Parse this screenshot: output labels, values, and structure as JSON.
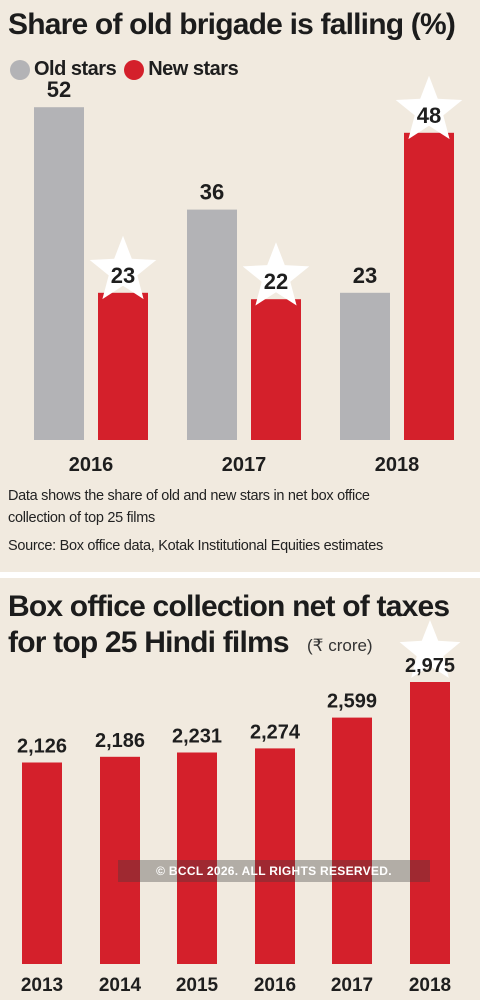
{
  "colors": {
    "old_stars": "#b3b3b6",
    "new_stars": "#d4202b",
    "background": "#f1eadf",
    "star": "#ffffff"
  },
  "top_panel": {
    "title": "Share of old brigade is falling (%)",
    "legend": [
      {
        "label": "Old stars",
        "color": "#b3b3b6"
      },
      {
        "label": "New stars",
        "color": "#d4202b"
      }
    ],
    "note_line1": "Data shows the share of old and new stars in net box office",
    "note_line2": "collection of top 25 films",
    "source": "Source:  Box office data, Kotak Institutional Equities estimates"
  },
  "bottom_panel": {
    "title_line1": "Box office collection net of taxes",
    "title_line2": "for top 25 Hindi films",
    "unit": "(₹ crore)"
  },
  "watermark": "© BCCL 2026. ALL RIGHTS RESERVED.",
  "chart_data": [
    {
      "type": "bar",
      "title": "Share of old brigade is falling (%)",
      "categories": [
        "2016",
        "2017",
        "2018"
      ],
      "series": [
        {
          "name": "Old stars",
          "values": [
            52,
            36,
            23
          ],
          "color": "#b3b3b6",
          "labels": [
            "52",
            "36",
            "23"
          ]
        },
        {
          "name": "New stars",
          "values": [
            23,
            22,
            48
          ],
          "color": "#d4202b",
          "labels": [
            "23",
            "22",
            "48"
          ]
        }
      ],
      "ylim": [
        0,
        60
      ],
      "grid": false,
      "legend_position": "top-left",
      "star_marker": "New stars"
    },
    {
      "type": "bar",
      "title": "Box office collection net of taxes for top 25 Hindi films",
      "unit": "(₹ crore)",
      "categories": [
        "2013",
        "2014",
        "2015",
        "2016",
        "2017",
        "2018"
      ],
      "values": [
        2126,
        2186,
        2231,
        2274,
        2599,
        2975
      ],
      "labels": [
        "2,126",
        "2,186",
        "2,231",
        "2,274",
        "2,599",
        "2,975"
      ],
      "color": "#d4202b",
      "ylim": [
        0,
        3200
      ],
      "grid": false,
      "star_marker_on": "2018"
    }
  ]
}
